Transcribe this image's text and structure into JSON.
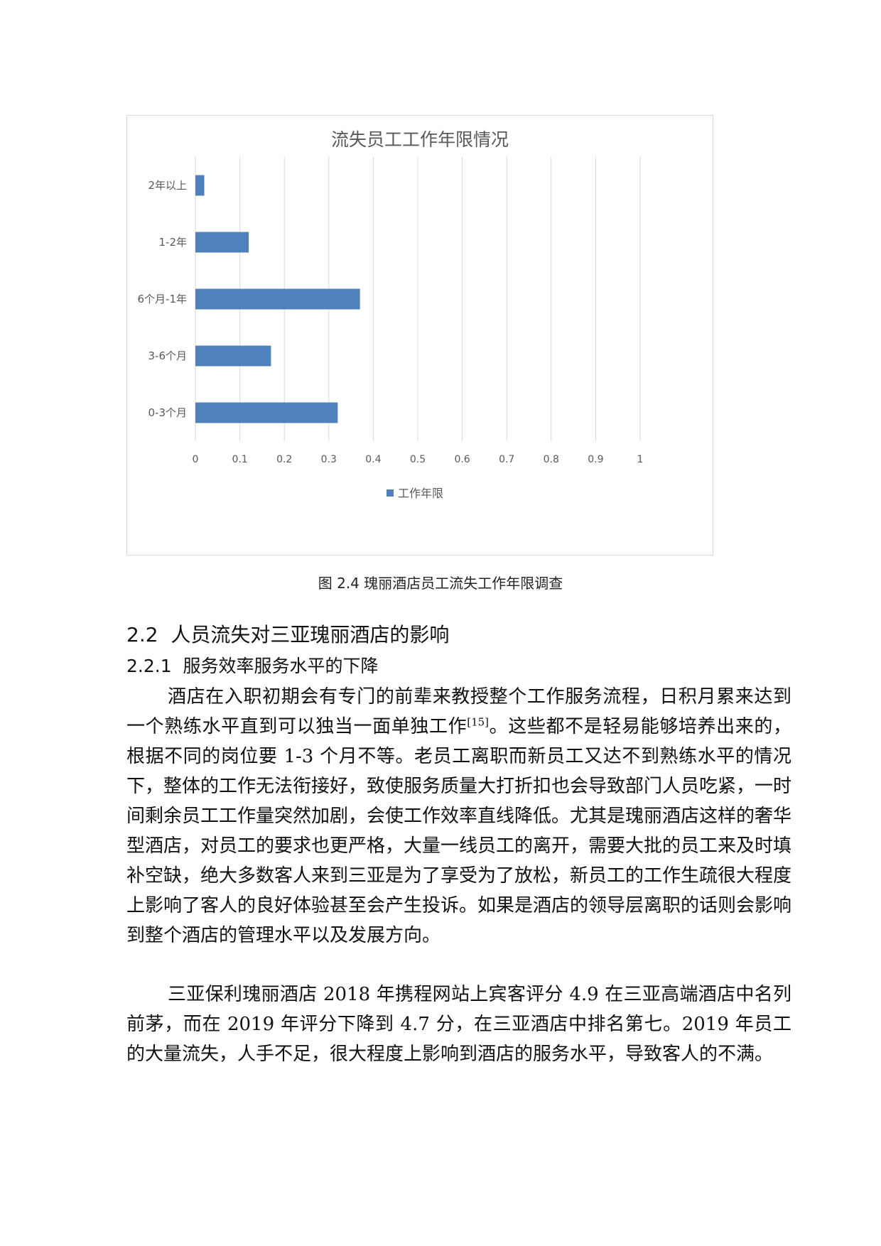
{
  "figure": {
    "caption": "图 2.4 瑰丽酒店员工流失工作年限调查"
  },
  "chart_data": {
    "type": "bar",
    "orientation": "horizontal",
    "title": "流失员工工作年限情况",
    "categories": [
      "2年以上",
      "1-2年",
      "6个月-1年",
      "3-6个月",
      "0-3个月"
    ],
    "series": [
      {
        "name": "工作年限",
        "values": [
          0.02,
          0.12,
          0.37,
          0.17,
          0.32
        ],
        "color": "#4f81bd"
      }
    ],
    "xlim": [
      0,
      1
    ],
    "xticks": [
      "0",
      "0.1",
      "0.2",
      "0.3",
      "0.4",
      "0.5",
      "0.6",
      "0.7",
      "0.8",
      "0.9",
      "1"
    ],
    "grid": "vertical",
    "legend_position": "bottom"
  },
  "section": {
    "heading": "2.2  人员流失对三亚瑰丽酒店的影响",
    "subheading": "2.2.1  服务效率服务水平的下降"
  },
  "paragraphs": {
    "p1_before": "酒店在入职初期会有专门的前辈来教授整个工作服务流程，日积月累来达到一个熟练水平直到可以独当一面单独工作",
    "p1_citation": "[15]",
    "p1_after": "。这些都不是轻易能够培养出来的，根据不同的岗位要 1-3 个月不等。老员工离职而新员工又达不到熟练水平的情况下，整体的工作无法衔接好，致使服务质量大打折扣也会导致部门人员吃紧，一时间剩余员工工作量突然加剧，会使工作效率直线降低。尤其是瑰丽酒店这样的奢华型酒店，对员工的要求也更严格，大量一线员工的离开，需要大批的员工来及时填补空缺，绝大多数客人来到三亚是为了享受为了放松，新员工的工作生疏很大程度上影响了客人的良好体验甚至会产生投诉。如果是酒店的领导层离职的话则会影响到整个酒店的管理水平以及发展方向。",
    "p2": "三亚保利瑰丽酒店 2018 年携程网站上宾客评分 4.9 在三亚高端酒店中名列前茅，而在 2019 年评分下降到 4.7 分，在三亚酒店中排名第七。2019 年员工的大量流失，人手不足，很大程度上影响到酒店的服务水平，导致客人的不满。"
  }
}
